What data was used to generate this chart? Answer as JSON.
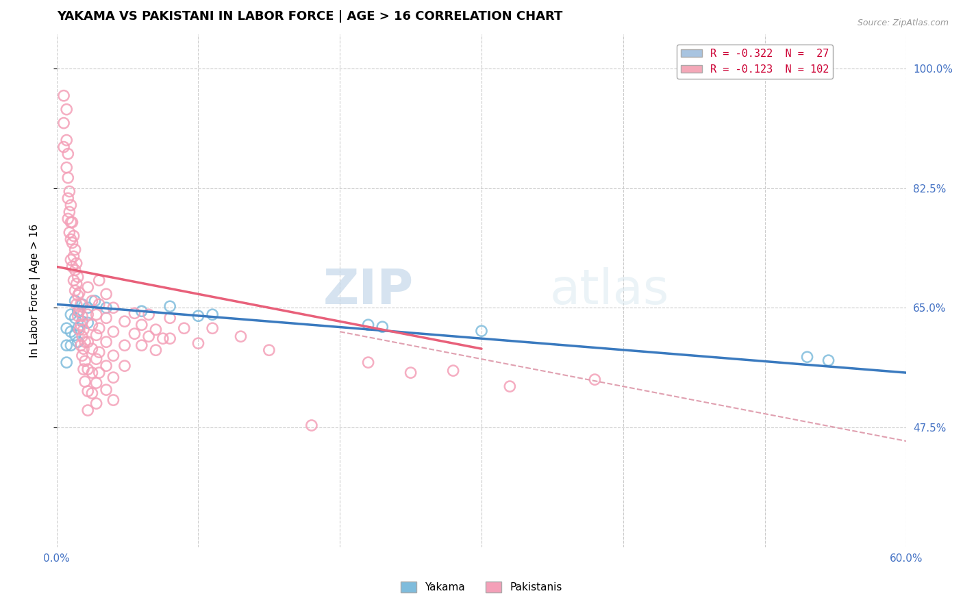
{
  "title": "YAKAMA VS PAKISTANI IN LABOR FORCE | AGE > 16 CORRELATION CHART",
  "source_text": "Source: ZipAtlas.com",
  "ylabel": "In Labor Force | Age > 16",
  "xlim": [
    0.0,
    0.6
  ],
  "ylim": [
    0.3,
    1.05
  ],
  "yticks": [
    0.475,
    0.65,
    0.825,
    1.0
  ],
  "ytick_labels": [
    "47.5%",
    "65.0%",
    "82.5%",
    "100.0%"
  ],
  "xticks": [
    0.0,
    0.1,
    0.2,
    0.3,
    0.4,
    0.5,
    0.6
  ],
  "xtick_labels": [
    "0.0%",
    "",
    "",
    "",
    "",
    "",
    "60.0%"
  ],
  "legend_entries": [
    {
      "label": "R = -0.322  N =  27",
      "color": "#a8c4e0"
    },
    {
      "label": "R = -0.123  N = 102",
      "color": "#f4a8b8"
    }
  ],
  "watermark_zip": "ZIP",
  "watermark_atlas": "atlas",
  "yakama_color": "#7fbcdc",
  "pakistani_color": "#f4a0b8",
  "yakama_line_color": "#3a7abf",
  "pakistani_line_color": "#e8607a",
  "dashed_line_color": "#e0a0b0",
  "yakama_scatter": [
    [
      0.007,
      0.62
    ],
    [
      0.007,
      0.595
    ],
    [
      0.007,
      0.57
    ],
    [
      0.01,
      0.64
    ],
    [
      0.01,
      0.615
    ],
    [
      0.01,
      0.595
    ],
    [
      0.013,
      0.66
    ],
    [
      0.013,
      0.635
    ],
    [
      0.013,
      0.61
    ],
    [
      0.015,
      0.645
    ],
    [
      0.015,
      0.62
    ],
    [
      0.015,
      0.6
    ],
    [
      0.018,
      0.655
    ],
    [
      0.018,
      0.63
    ],
    [
      0.022,
      0.65
    ],
    [
      0.022,
      0.628
    ],
    [
      0.027,
      0.66
    ],
    [
      0.035,
      0.65
    ],
    [
      0.06,
      0.645
    ],
    [
      0.08,
      0.652
    ],
    [
      0.1,
      0.638
    ],
    [
      0.11,
      0.64
    ],
    [
      0.22,
      0.625
    ],
    [
      0.23,
      0.622
    ],
    [
      0.3,
      0.616
    ],
    [
      0.53,
      0.578
    ],
    [
      0.545,
      0.573
    ]
  ],
  "pakistani_scatter": [
    [
      0.005,
      0.96
    ],
    [
      0.005,
      0.92
    ],
    [
      0.005,
      0.885
    ],
    [
      0.007,
      0.94
    ],
    [
      0.007,
      0.895
    ],
    [
      0.007,
      0.855
    ],
    [
      0.008,
      0.875
    ],
    [
      0.008,
      0.84
    ],
    [
      0.008,
      0.81
    ],
    [
      0.008,
      0.78
    ],
    [
      0.009,
      0.82
    ],
    [
      0.009,
      0.79
    ],
    [
      0.009,
      0.76
    ],
    [
      0.01,
      0.8
    ],
    [
      0.01,
      0.775
    ],
    [
      0.01,
      0.75
    ],
    [
      0.01,
      0.72
    ],
    [
      0.011,
      0.775
    ],
    [
      0.011,
      0.745
    ],
    [
      0.011,
      0.71
    ],
    [
      0.012,
      0.755
    ],
    [
      0.012,
      0.725
    ],
    [
      0.012,
      0.69
    ],
    [
      0.013,
      0.735
    ],
    [
      0.013,
      0.705
    ],
    [
      0.013,
      0.675
    ],
    [
      0.014,
      0.715
    ],
    [
      0.014,
      0.685
    ],
    [
      0.014,
      0.655
    ],
    [
      0.015,
      0.695
    ],
    [
      0.015,
      0.668
    ],
    [
      0.015,
      0.638
    ],
    [
      0.016,
      0.672
    ],
    [
      0.016,
      0.645
    ],
    [
      0.016,
      0.618
    ],
    [
      0.017,
      0.655
    ],
    [
      0.017,
      0.625
    ],
    [
      0.017,
      0.595
    ],
    [
      0.018,
      0.638
    ],
    [
      0.018,
      0.608
    ],
    [
      0.018,
      0.58
    ],
    [
      0.019,
      0.618
    ],
    [
      0.019,
      0.59
    ],
    [
      0.019,
      0.56
    ],
    [
      0.02,
      0.6
    ],
    [
      0.02,
      0.572
    ],
    [
      0.02,
      0.542
    ],
    [
      0.022,
      0.68
    ],
    [
      0.022,
      0.64
    ],
    [
      0.022,
      0.6
    ],
    [
      0.022,
      0.56
    ],
    [
      0.022,
      0.528
    ],
    [
      0.022,
      0.5
    ],
    [
      0.025,
      0.66
    ],
    [
      0.025,
      0.625
    ],
    [
      0.025,
      0.59
    ],
    [
      0.025,
      0.555
    ],
    [
      0.025,
      0.525
    ],
    [
      0.028,
      0.64
    ],
    [
      0.028,
      0.61
    ],
    [
      0.028,
      0.575
    ],
    [
      0.028,
      0.54
    ],
    [
      0.028,
      0.51
    ],
    [
      0.03,
      0.69
    ],
    [
      0.03,
      0.655
    ],
    [
      0.03,
      0.62
    ],
    [
      0.03,
      0.585
    ],
    [
      0.03,
      0.555
    ],
    [
      0.035,
      0.67
    ],
    [
      0.035,
      0.635
    ],
    [
      0.035,
      0.6
    ],
    [
      0.035,
      0.565
    ],
    [
      0.035,
      0.53
    ],
    [
      0.04,
      0.65
    ],
    [
      0.04,
      0.615
    ],
    [
      0.04,
      0.58
    ],
    [
      0.04,
      0.548
    ],
    [
      0.04,
      0.515
    ],
    [
      0.048,
      0.63
    ],
    [
      0.048,
      0.595
    ],
    [
      0.048,
      0.565
    ],
    [
      0.055,
      0.642
    ],
    [
      0.055,
      0.612
    ],
    [
      0.06,
      0.625
    ],
    [
      0.06,
      0.595
    ],
    [
      0.065,
      0.64
    ],
    [
      0.065,
      0.608
    ],
    [
      0.07,
      0.618
    ],
    [
      0.07,
      0.588
    ],
    [
      0.075,
      0.605
    ],
    [
      0.08,
      0.635
    ],
    [
      0.08,
      0.605
    ],
    [
      0.09,
      0.62
    ],
    [
      0.1,
      0.598
    ],
    [
      0.11,
      0.62
    ],
    [
      0.13,
      0.608
    ],
    [
      0.15,
      0.588
    ],
    [
      0.18,
      0.478
    ],
    [
      0.22,
      0.57
    ],
    [
      0.25,
      0.555
    ],
    [
      0.28,
      0.558
    ],
    [
      0.32,
      0.535
    ],
    [
      0.38,
      0.545
    ]
  ],
  "yakama_line": {
    "x0": 0.0,
    "y0": 0.655,
    "x1": 0.6,
    "y1": 0.555
  },
  "pakistani_line": {
    "x0": 0.0,
    "y0": 0.71,
    "x1": 0.3,
    "y1": 0.59
  },
  "dashed_line": {
    "x0": 0.2,
    "y0": 0.615,
    "x1": 0.6,
    "y1": 0.455
  }
}
